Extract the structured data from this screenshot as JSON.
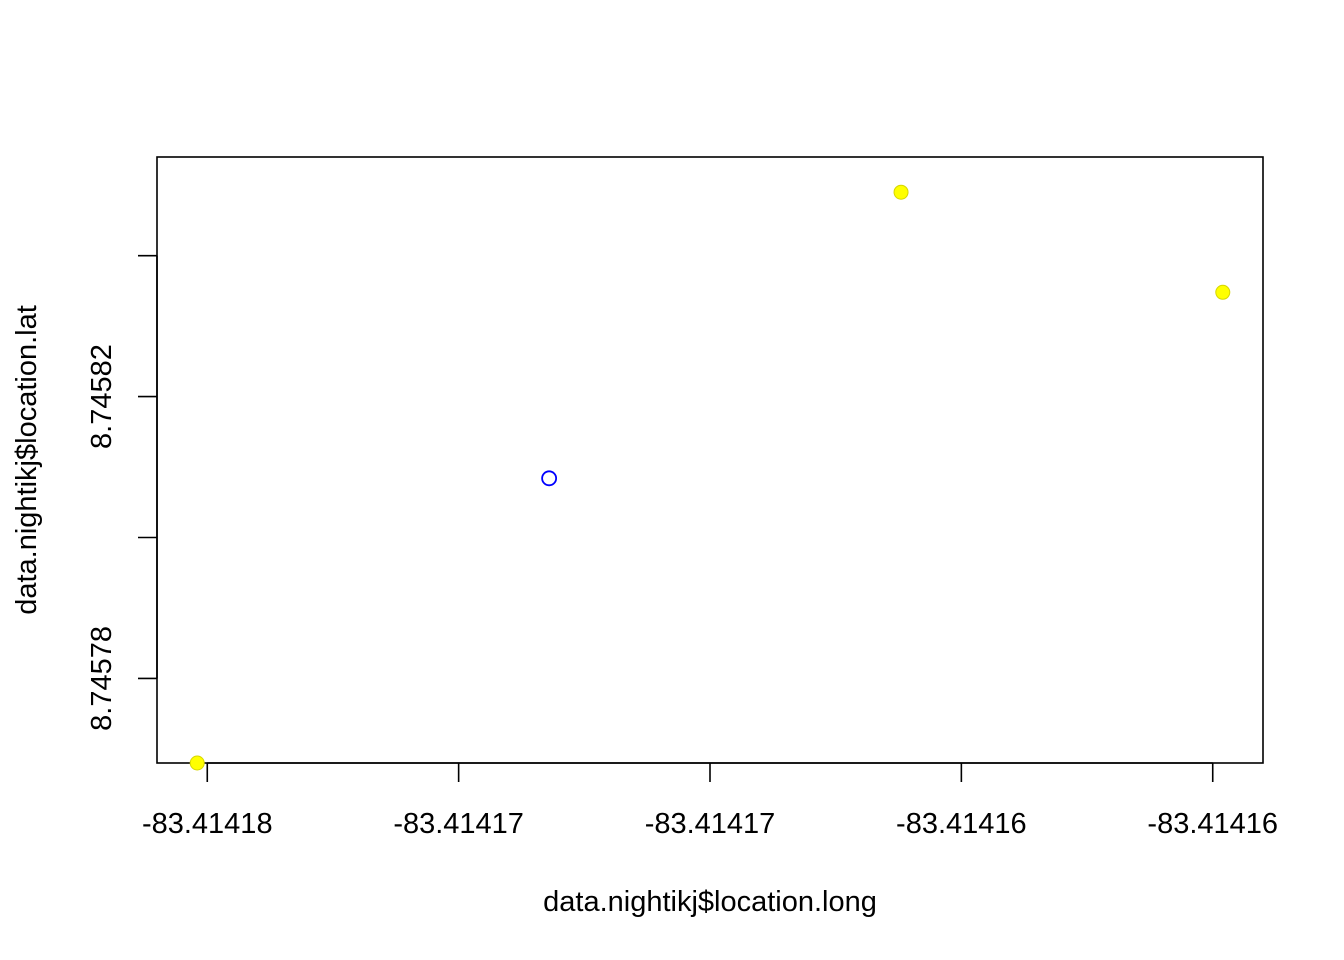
{
  "chart_data": {
    "type": "scatter",
    "xlabel": "data.nightikj$location.long",
    "ylabel": "data.nightikj$location.lat",
    "xlim": [
      -83.414181,
      -83.414159
    ],
    "ylim": [
      8.745768,
      8.745854
    ],
    "x_ticks": [
      {
        "value": -83.41418,
        "label": "-83.41418"
      },
      {
        "value": -83.414175,
        "label": "-83.41417"
      },
      {
        "value": -83.41417,
        "label": "-83.41417"
      },
      {
        "value": -83.414165,
        "label": "-83.41416"
      },
      {
        "value": -83.41416,
        "label": "-83.41416"
      }
    ],
    "y_ticks": [
      {
        "value": 8.74578,
        "label": "8.74578"
      },
      {
        "value": 8.7458,
        "label": ""
      },
      {
        "value": 8.74582,
        "label": "8.74582"
      },
      {
        "value": 8.74584,
        "label": ""
      }
    ],
    "points": [
      {
        "x": -83.4141802,
        "y": 8.745768,
        "style": "filled",
        "color": "#ffff00"
      },
      {
        "x": -83.4141732,
        "y": 8.7458084,
        "style": "open",
        "color": "#0000ff"
      },
      {
        "x": -83.4141662,
        "y": 8.745849,
        "style": "filled",
        "color": "#ffff00"
      },
      {
        "x": -83.4141598,
        "y": 8.7458348,
        "style": "filled",
        "color": "#ffff00"
      }
    ],
    "grid": false,
    "legend": "none"
  }
}
